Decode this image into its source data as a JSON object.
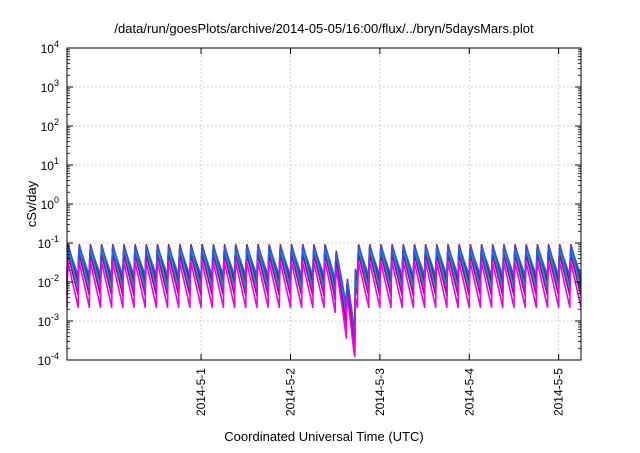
{
  "chart_data": {
    "type": "line",
    "title": "/data/run/goesPlots/archive/2014-05-05/16:00/flux/../bryn/5daysMars.plot",
    "xlabel": "Coordinated Universal Time (UTC)",
    "ylabel": "cSv/day",
    "y_scale": "log",
    "ylim": [
      0.0001,
      10000
    ],
    "xlim": [
      "2014-04-30 00:00",
      "2014-05-05 18:00"
    ],
    "x_ticks": [
      "2014-5-1",
      "2014-5-2",
      "2014-5-3",
      "2014-5-4",
      "2014-5-5"
    ],
    "y_ticks": [
      {
        "value": 0.0001,
        "base": "10",
        "exp": "-4"
      },
      {
        "value": 0.001,
        "base": "10",
        "exp": "-3"
      },
      {
        "value": 0.01,
        "base": "10",
        "exp": "-2"
      },
      {
        "value": 0.1,
        "base": "10",
        "exp": "-1"
      },
      {
        "value": 1,
        "base": "10",
        "exp": "0"
      },
      {
        "value": 10,
        "base": "10",
        "exp": "1"
      },
      {
        "value": 100,
        "base": "10",
        "exp": "2"
      },
      {
        "value": 1000,
        "base": "10",
        "exp": "3"
      },
      {
        "value": 10000,
        "base": "10",
        "exp": "4"
      }
    ],
    "grid": true,
    "legend": "none",
    "pattern": {
      "period_hours": 3,
      "description": "sawtooth: sharp rise each 3 h then decay; deep dip near 2014-05-03 05:00"
    },
    "series": [
      {
        "color": "#cc0000",
        "peak_ratio": 1.0,
        "min_ratio": 0.12
      },
      {
        "color": "#1f3f8f",
        "peak_ratio": 0.95,
        "min_ratio": 0.1
      },
      {
        "color": "#00a5a5",
        "peak_ratio": 0.75,
        "min_ratio": 0.075
      },
      {
        "color": "#a000a0",
        "peak_ratio": 0.55,
        "min_ratio": 0.05
      },
      {
        "color": "#3355ee",
        "peak_ratio": 0.9,
        "min_ratio": 0.16
      },
      {
        "color": "#ee00ee",
        "peak_ratio": 0.35,
        "min_ratio": 0.025
      }
    ]
  }
}
